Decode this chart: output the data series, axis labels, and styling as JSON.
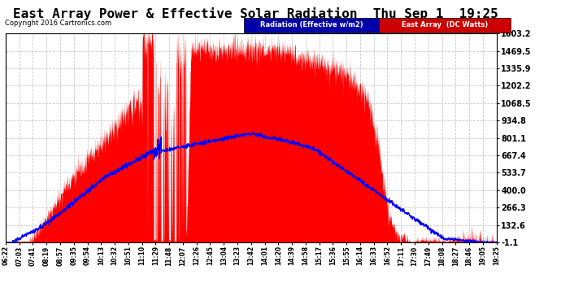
{
  "title": "East Array Power & Effective Solar Radiation  Thu Sep 1  19:25",
  "copyright": "Copyright 2016 Cartronics.com",
  "legend_blue": "Radiation (Effective w/m2)",
  "legend_red": "East Array  (DC Watts)",
  "yticks": [
    -1.1,
    132.6,
    266.3,
    400.0,
    533.7,
    667.4,
    801.1,
    934.8,
    1068.5,
    1202.2,
    1335.9,
    1469.5,
    1603.2
  ],
  "ymin": -1.1,
  "ymax": 1603.2,
  "bg_color": "#ffffff",
  "plot_bg_color": "#ffffff",
  "grid_color": "#c8c8c8",
  "red_color": "#ff0000",
  "blue_color": "#0000ff",
  "title_fontsize": 11.5,
  "xtick_labels": [
    "06:22",
    "07:03",
    "07:41",
    "08:19",
    "08:57",
    "09:35",
    "09:54",
    "10:13",
    "10:32",
    "10:51",
    "11:10",
    "11:29",
    "11:48",
    "12:07",
    "12:26",
    "12:45",
    "13:04",
    "13:23",
    "13:42",
    "14:01",
    "14:20",
    "14:39",
    "14:58",
    "15:17",
    "15:36",
    "15:55",
    "16:14",
    "16:33",
    "16:52",
    "17:11",
    "17:30",
    "17:49",
    "18:08",
    "18:27",
    "18:46",
    "19:05",
    "19:25"
  ]
}
